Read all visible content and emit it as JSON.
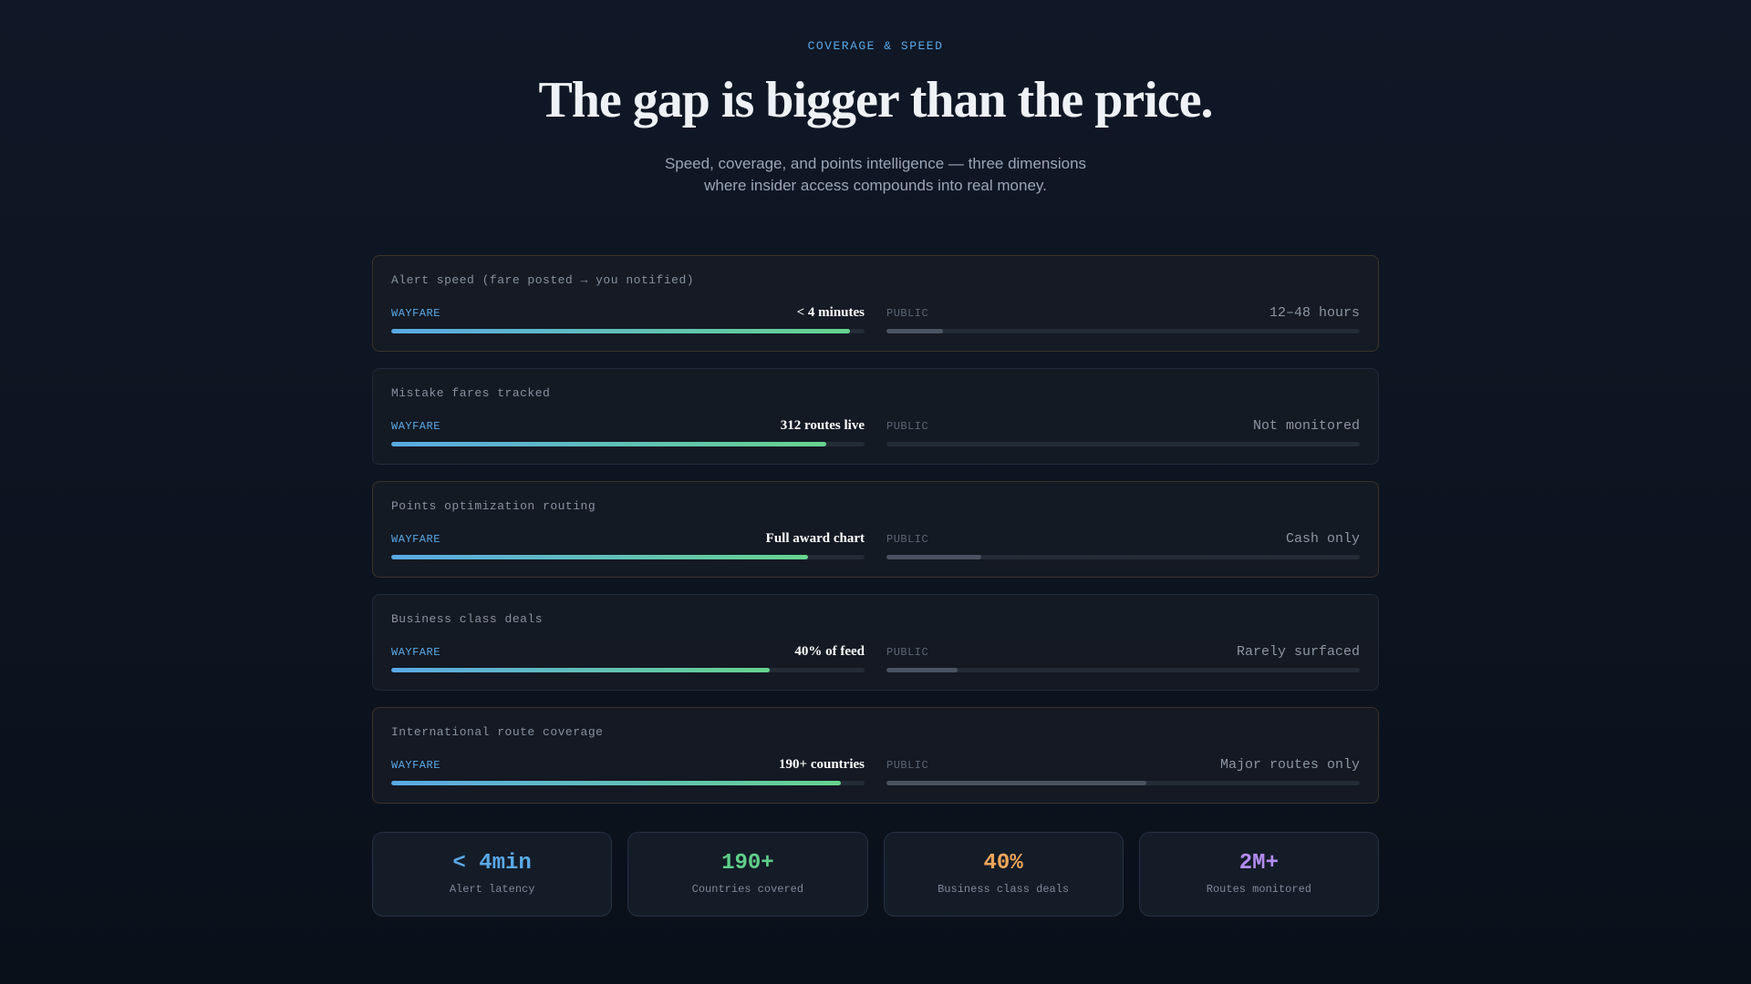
{
  "header": {
    "eyebrow": "COVERAGE & SPEED",
    "title": "The gap is bigger than the price.",
    "subtitle_lines": [
      "Speed, coverage, and points intelligence — three dimensions",
      "where insider access compounds into real money."
    ]
  },
  "rows": [
    {
      "label": "Alert speed (fare posted → you notified)",
      "wayfare_tag": "WAYFARE",
      "wayfare_value": "< 4 minutes",
      "wayfare_fill": 97,
      "public_tag": "PUBLIC",
      "public_value": "12–48 hours",
      "public_fill": 12,
      "border": "#3a3328"
    },
    {
      "label": "Mistake fares tracked",
      "wayfare_tag": "WAYFARE",
      "wayfare_value": "312 routes live",
      "wayfare_fill": 92,
      "public_tag": "PUBLIC",
      "public_value": "Not monitored",
      "public_fill": 0,
      "border": "#1f2a3a"
    },
    {
      "label": "Points optimization routing",
      "wayfare_tag": "WAYFARE",
      "wayfare_value": "Full award chart",
      "wayfare_fill": 88,
      "public_tag": "PUBLIC",
      "public_value": "Cash only",
      "public_fill": 20,
      "border": "#3a3328"
    },
    {
      "label": "Business class deals",
      "wayfare_tag": "WAYFARE",
      "wayfare_value": "40% of feed",
      "wayfare_fill": 80,
      "public_tag": "PUBLIC",
      "public_value": "Rarely surfaced",
      "public_fill": 15,
      "border": "#1f2a3a"
    },
    {
      "label": "International route coverage",
      "wayfare_tag": "WAYFARE",
      "wayfare_value": "190+ countries",
      "wayfare_fill": 95,
      "public_tag": "PUBLIC",
      "public_value": "Major routes only",
      "public_fill": 55,
      "border": "#3a3328"
    }
  ],
  "stats": [
    {
      "value": "< 4min",
      "label": "Alert latency",
      "color": "#5aa9e6"
    },
    {
      "value": "190+",
      "label": "Countries covered",
      "color": "#5fd08a"
    },
    {
      "value": "40%",
      "label": "Business class deals",
      "color": "#f0a65a"
    },
    {
      "value": "2M+",
      "label": "Routes monitored",
      "color": "#b28cf0"
    }
  ]
}
